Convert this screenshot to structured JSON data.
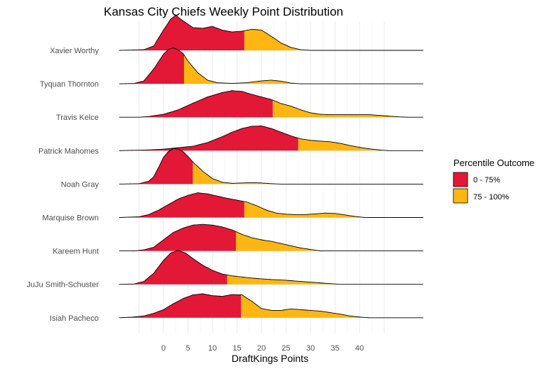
{
  "chart_data": {
    "type": "ridgeline",
    "title": "Kansas City Chiefs Weekly Point Distribution",
    "xlabel": "DraftKings Points",
    "ylabel": "",
    "xlim": [
      -9,
      53
    ],
    "x_ticks": [
      0,
      5,
      10,
      15,
      20,
      25,
      30,
      35,
      40
    ],
    "grid": true,
    "legend": {
      "title": "Percentile Outcome",
      "position": "right",
      "entries": [
        {
          "label": "0 - 75%",
          "color": "#E31837"
        },
        {
          "label": "75 - 100%",
          "color": "#FFB612"
        }
      ]
    },
    "colors": {
      "low": "#E31837",
      "high": "#FFB612",
      "outline": "#000000"
    },
    "series": [
      {
        "name": "Xavier Worthy",
        "p75": 16.5,
        "density": [
          [
            -9,
            0
          ],
          [
            -4,
            0.02
          ],
          [
            -2,
            0.12
          ],
          [
            0,
            0.55
          ],
          [
            1.5,
            0.85
          ],
          [
            2.5,
            0.95
          ],
          [
            4,
            0.8
          ],
          [
            6,
            0.62
          ],
          [
            8,
            0.6
          ],
          [
            10,
            0.65
          ],
          [
            12,
            0.55
          ],
          [
            14,
            0.5
          ],
          [
            16,
            0.52
          ],
          [
            18,
            0.57
          ],
          [
            20,
            0.55
          ],
          [
            22,
            0.38
          ],
          [
            24,
            0.2
          ],
          [
            26,
            0.08
          ],
          [
            28,
            0.02
          ],
          [
            30,
            0
          ],
          [
            53,
            0
          ]
        ]
      },
      {
        "name": "Tyquan Thornton",
        "p75": 4.2,
        "density": [
          [
            -9,
            0
          ],
          [
            -6,
            0.01
          ],
          [
            -4,
            0.08
          ],
          [
            -2,
            0.4
          ],
          [
            0,
            0.8
          ],
          [
            1,
            0.93
          ],
          [
            2,
            0.97
          ],
          [
            3,
            0.92
          ],
          [
            4,
            0.82
          ],
          [
            5,
            0.62
          ],
          [
            7,
            0.3
          ],
          [
            9,
            0.1
          ],
          [
            11,
            0.03
          ],
          [
            14,
            0.01
          ],
          [
            17,
            0.03
          ],
          [
            20,
            0.08
          ],
          [
            22,
            0.1
          ],
          [
            24,
            0.07
          ],
          [
            26,
            0.02
          ],
          [
            28,
            0
          ],
          [
            53,
            0
          ]
        ]
      },
      {
        "name": "Travis Kelce",
        "p75": 22.3,
        "density": [
          [
            -9,
            0
          ],
          [
            -5,
            0
          ],
          [
            -3,
            0.02
          ],
          [
            0,
            0.08
          ],
          [
            3,
            0.2
          ],
          [
            6,
            0.38
          ],
          [
            9,
            0.55
          ],
          [
            12,
            0.67
          ],
          [
            14,
            0.72
          ],
          [
            16,
            0.7
          ],
          [
            18,
            0.62
          ],
          [
            20,
            0.55
          ],
          [
            22,
            0.48
          ],
          [
            24,
            0.37
          ],
          [
            26,
            0.3
          ],
          [
            28,
            0.2
          ],
          [
            30,
            0.12
          ],
          [
            32,
            0.08
          ],
          [
            34,
            0.07
          ],
          [
            36,
            0.07
          ],
          [
            38,
            0.07
          ],
          [
            42,
            0.07
          ],
          [
            44,
            0.05
          ],
          [
            46,
            0.03
          ],
          [
            48,
            0.01
          ],
          [
            50,
            0
          ],
          [
            53,
            0
          ]
        ]
      },
      {
        "name": "Patrick Mahomes",
        "p75": 27.5,
        "density": [
          [
            -9,
            0
          ],
          [
            -6,
            0.01
          ],
          [
            -3,
            0.02
          ],
          [
            0,
            0.04
          ],
          [
            3,
            0.08
          ],
          [
            6,
            0.12
          ],
          [
            9,
            0.22
          ],
          [
            12,
            0.38
          ],
          [
            14,
            0.5
          ],
          [
            16,
            0.6
          ],
          [
            18,
            0.66
          ],
          [
            20,
            0.67
          ],
          [
            22,
            0.6
          ],
          [
            24,
            0.5
          ],
          [
            26,
            0.4
          ],
          [
            28,
            0.32
          ],
          [
            30,
            0.28
          ],
          [
            32,
            0.26
          ],
          [
            34,
            0.24
          ],
          [
            36,
            0.2
          ],
          [
            38,
            0.14
          ],
          [
            40,
            0.09
          ],
          [
            42,
            0.05
          ],
          [
            44,
            0.02
          ],
          [
            46,
            0
          ],
          [
            53,
            0
          ]
        ]
      },
      {
        "name": "Noah Gray",
        "p75": 6.0,
        "density": [
          [
            -9,
            0
          ],
          [
            -5,
            0.01
          ],
          [
            -3,
            0.08
          ],
          [
            -2,
            0.2
          ],
          [
            -1,
            0.45
          ],
          [
            0,
            0.72
          ],
          [
            1,
            0.88
          ],
          [
            2,
            0.96
          ],
          [
            3,
            0.95
          ],
          [
            4,
            0.88
          ],
          [
            5,
            0.75
          ],
          [
            6,
            0.6
          ],
          [
            8,
            0.35
          ],
          [
            10,
            0.15
          ],
          [
            12,
            0.05
          ],
          [
            14,
            0.02
          ],
          [
            16,
            0.03
          ],
          [
            18,
            0.04
          ],
          [
            20,
            0.03
          ],
          [
            22,
            0.01
          ],
          [
            24,
            0
          ],
          [
            53,
            0
          ]
        ]
      },
      {
        "name": "Marquise Brown",
        "p75": 16.5,
        "density": [
          [
            -9,
            0
          ],
          [
            -5,
            0.02
          ],
          [
            -3,
            0.08
          ],
          [
            -1,
            0.2
          ],
          [
            1,
            0.35
          ],
          [
            3,
            0.5
          ],
          [
            5,
            0.6
          ],
          [
            7,
            0.67
          ],
          [
            9,
            0.64
          ],
          [
            11,
            0.58
          ],
          [
            13,
            0.52
          ],
          [
            15,
            0.47
          ],
          [
            17,
            0.42
          ],
          [
            19,
            0.32
          ],
          [
            21,
            0.2
          ],
          [
            23,
            0.12
          ],
          [
            25,
            0.09
          ],
          [
            27,
            0.08
          ],
          [
            29,
            0.08
          ],
          [
            31,
            0.1
          ],
          [
            33,
            0.12
          ],
          [
            35,
            0.11
          ],
          [
            37,
            0.07
          ],
          [
            39,
            0.03
          ],
          [
            41,
            0
          ],
          [
            53,
            0
          ]
        ]
      },
      {
        "name": "Kareem Hunt",
        "p75": 14.8,
        "density": [
          [
            -9,
            0
          ],
          [
            -6,
            0
          ],
          [
            -4,
            0.03
          ],
          [
            -2,
            0.1
          ],
          [
            0,
            0.3
          ],
          [
            2,
            0.5
          ],
          [
            4,
            0.62
          ],
          [
            6,
            0.7
          ],
          [
            8,
            0.72
          ],
          [
            10,
            0.7
          ],
          [
            12,
            0.65
          ],
          [
            14,
            0.57
          ],
          [
            16,
            0.45
          ],
          [
            18,
            0.36
          ],
          [
            20,
            0.3
          ],
          [
            22,
            0.26
          ],
          [
            24,
            0.2
          ],
          [
            26,
            0.14
          ],
          [
            28,
            0.08
          ],
          [
            30,
            0.04
          ],
          [
            32,
            0
          ],
          [
            53,
            0
          ]
        ]
      },
      {
        "name": "JuJu Smith-Schuster",
        "p75": 13.0,
        "density": [
          [
            -9,
            0
          ],
          [
            -6,
            0.01
          ],
          [
            -4,
            0.08
          ],
          [
            -2,
            0.3
          ],
          [
            0,
            0.65
          ],
          [
            1.5,
            0.85
          ],
          [
            3,
            0.92
          ],
          [
            4.5,
            0.85
          ],
          [
            6,
            0.7
          ],
          [
            8,
            0.52
          ],
          [
            10,
            0.38
          ],
          [
            12,
            0.28
          ],
          [
            14,
            0.23
          ],
          [
            16,
            0.2
          ],
          [
            18,
            0.17
          ],
          [
            20,
            0.15
          ],
          [
            22,
            0.13
          ],
          [
            24,
            0.12
          ],
          [
            26,
            0.1
          ],
          [
            28,
            0.08
          ],
          [
            30,
            0.06
          ],
          [
            32,
            0.04
          ],
          [
            34,
            0.02
          ],
          [
            36,
            0
          ],
          [
            53,
            0
          ]
        ]
      },
      {
        "name": "Isiah Pacheco",
        "p75": 15.8,
        "density": [
          [
            -9,
            0
          ],
          [
            -6,
            0.02
          ],
          [
            -4,
            0.05
          ],
          [
            -2,
            0.12
          ],
          [
            0,
            0.22
          ],
          [
            2,
            0.38
          ],
          [
            4,
            0.52
          ],
          [
            6,
            0.62
          ],
          [
            8,
            0.65
          ],
          [
            10,
            0.6
          ],
          [
            12,
            0.58
          ],
          [
            14,
            0.63
          ],
          [
            16,
            0.62
          ],
          [
            18,
            0.45
          ],
          [
            20,
            0.25
          ],
          [
            22,
            0.2
          ],
          [
            24,
            0.2
          ],
          [
            26,
            0.24
          ],
          [
            28,
            0.22
          ],
          [
            30,
            0.2
          ],
          [
            32,
            0.18
          ],
          [
            34,
            0.14
          ],
          [
            36,
            0.1
          ],
          [
            38,
            0.05
          ],
          [
            40,
            0.02
          ],
          [
            42,
            0
          ],
          [
            53,
            0
          ]
        ]
      }
    ]
  }
}
